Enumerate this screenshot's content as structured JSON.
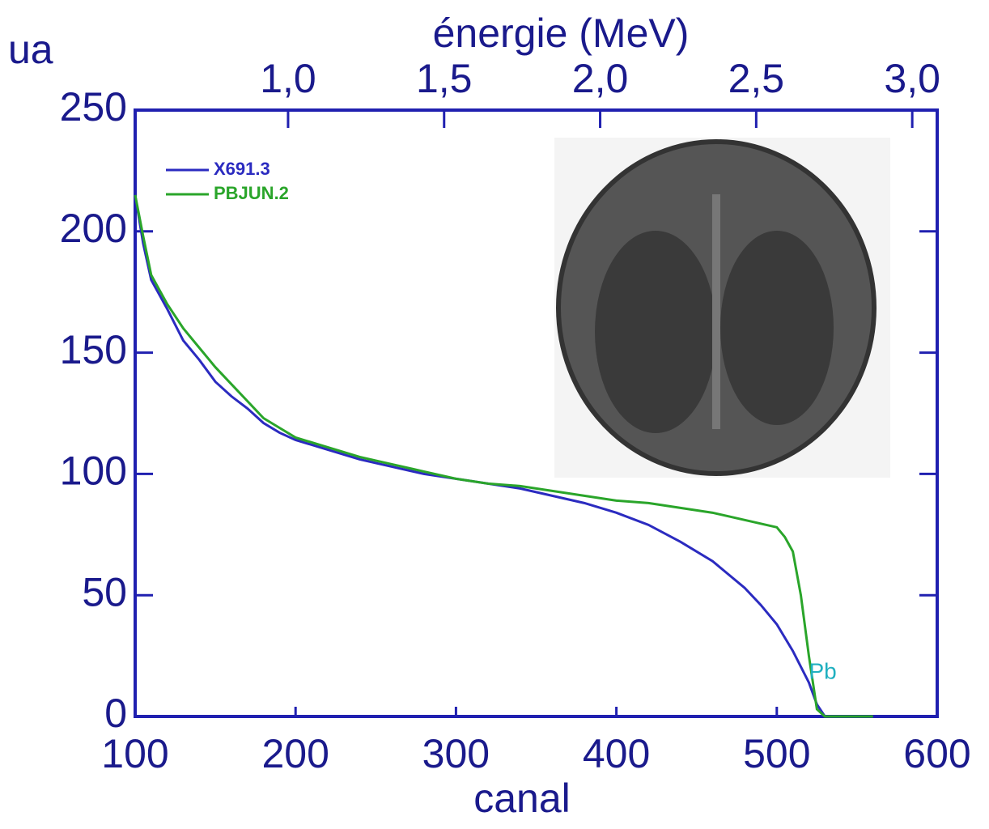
{
  "chart_data": {
    "type": "line",
    "xlabel": "canal",
    "ylabel": "ua",
    "x2label": "énergie (MeV)",
    "xlim": [
      100,
      600
    ],
    "xticks": [
      100,
      200,
      300,
      400,
      500,
      600
    ],
    "ylim": [
      0,
      250
    ],
    "yticks": [
      0,
      50,
      100,
      150,
      200,
      250
    ],
    "x2lim": [
      0.51,
      3.08
    ],
    "x2ticks": [
      {
        "value": 1.0,
        "label": "1,0"
      },
      {
        "value": 1.5,
        "label": "1,5"
      },
      {
        "value": 2.0,
        "label": "2,0"
      },
      {
        "value": 2.5,
        "label": "2,5"
      },
      {
        "value": 3.0,
        "label": "3,0"
      }
    ],
    "series": [
      {
        "name": "X691.3",
        "color": "#2b2bc0",
        "x": [
          100,
          105,
          110,
          120,
          130,
          140,
          150,
          160,
          170,
          180,
          190,
          200,
          220,
          240,
          260,
          280,
          300,
          320,
          340,
          360,
          380,
          400,
          420,
          440,
          460,
          480,
          490,
          500,
          510,
          520,
          525,
          530,
          540,
          560
        ],
        "values": [
          215,
          195,
          180,
          168,
          155,
          147,
          138,
          132,
          127,
          121,
          117,
          114,
          110,
          106,
          103,
          100,
          98,
          96,
          94,
          91,
          88,
          84,
          79,
          72,
          64,
          53,
          46,
          38,
          27,
          14,
          5,
          0,
          0,
          0
        ]
      },
      {
        "name": "PBJUN.2",
        "color": "#2aa52a",
        "x": [
          100,
          105,
          110,
          120,
          130,
          140,
          150,
          160,
          170,
          180,
          190,
          200,
          220,
          240,
          260,
          280,
          300,
          320,
          340,
          360,
          380,
          400,
          420,
          440,
          460,
          480,
          500,
          505,
          510,
          515,
          520,
          525,
          530,
          560
        ],
        "values": [
          215,
          198,
          182,
          170,
          160,
          152,
          144,
          137,
          130,
          123,
          119,
          115,
          111,
          107,
          104,
          101,
          98,
          96,
          95,
          93,
          91,
          89,
          88,
          86,
          84,
          81,
          78,
          74,
          68,
          50,
          25,
          3,
          0,
          0
        ]
      }
    ],
    "annotations": [
      {
        "text": "Pb",
        "x": 520,
        "y": 18,
        "color": "#20b0c0"
      }
    ]
  }
}
